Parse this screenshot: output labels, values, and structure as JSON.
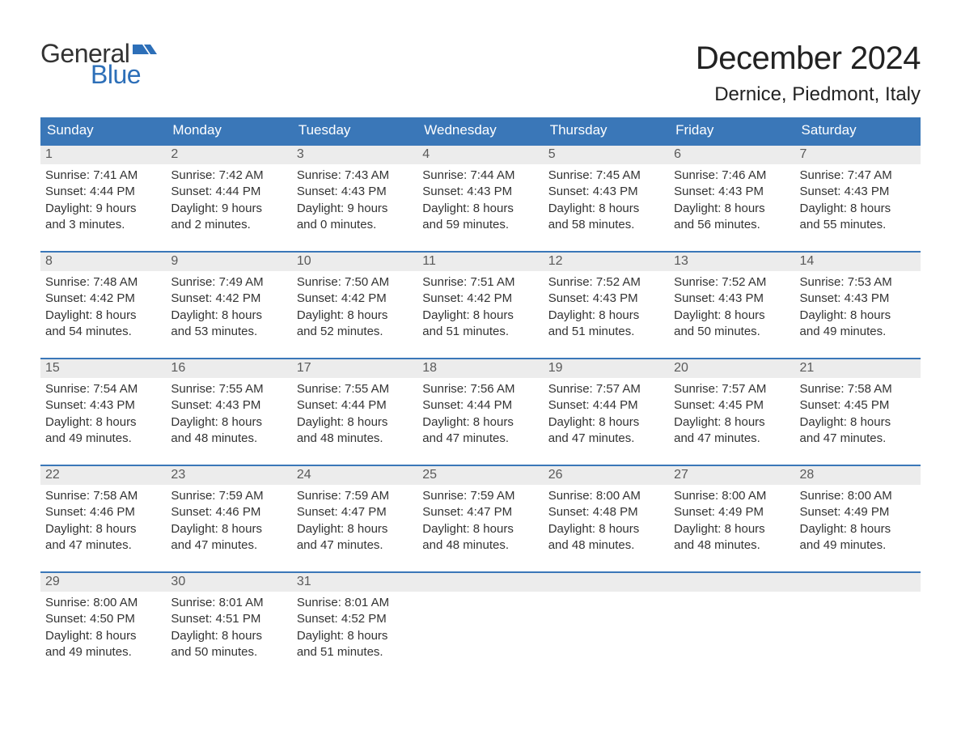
{
  "brand": {
    "word1": "General",
    "word2": "Blue",
    "flag_color": "#2d6fb8",
    "text_color_dark": "#333333"
  },
  "title": "December 2024",
  "location": "Dernice, Piedmont, Italy",
  "colors": {
    "header_bg": "#3a77b8",
    "header_text": "#ffffff",
    "week_border": "#3a77b8",
    "daynum_bg": "#ececec",
    "daynum_text": "#5a5a5a",
    "body_text": "#333333",
    "page_bg": "#ffffff"
  },
  "typography": {
    "title_fontsize": 40,
    "location_fontsize": 24,
    "dow_fontsize": 17,
    "daynum_fontsize": 16,
    "body_fontsize": 15,
    "logo_fontsize": 32
  },
  "days_of_week": [
    "Sunday",
    "Monday",
    "Tuesday",
    "Wednesday",
    "Thursday",
    "Friday",
    "Saturday"
  ],
  "weeks": [
    [
      {
        "n": "1",
        "sunrise": "7:41 AM",
        "sunset": "4:44 PM",
        "dl1": "9 hours",
        "dl2": "and 3 minutes."
      },
      {
        "n": "2",
        "sunrise": "7:42 AM",
        "sunset": "4:44 PM",
        "dl1": "9 hours",
        "dl2": "and 2 minutes."
      },
      {
        "n": "3",
        "sunrise": "7:43 AM",
        "sunset": "4:43 PM",
        "dl1": "9 hours",
        "dl2": "and 0 minutes."
      },
      {
        "n": "4",
        "sunrise": "7:44 AM",
        "sunset": "4:43 PM",
        "dl1": "8 hours",
        "dl2": "and 59 minutes."
      },
      {
        "n": "5",
        "sunrise": "7:45 AM",
        "sunset": "4:43 PM",
        "dl1": "8 hours",
        "dl2": "and 58 minutes."
      },
      {
        "n": "6",
        "sunrise": "7:46 AM",
        "sunset": "4:43 PM",
        "dl1": "8 hours",
        "dl2": "and 56 minutes."
      },
      {
        "n": "7",
        "sunrise": "7:47 AM",
        "sunset": "4:43 PM",
        "dl1": "8 hours",
        "dl2": "and 55 minutes."
      }
    ],
    [
      {
        "n": "8",
        "sunrise": "7:48 AM",
        "sunset": "4:42 PM",
        "dl1": "8 hours",
        "dl2": "and 54 minutes."
      },
      {
        "n": "9",
        "sunrise": "7:49 AM",
        "sunset": "4:42 PM",
        "dl1": "8 hours",
        "dl2": "and 53 minutes."
      },
      {
        "n": "10",
        "sunrise": "7:50 AM",
        "sunset": "4:42 PM",
        "dl1": "8 hours",
        "dl2": "and 52 minutes."
      },
      {
        "n": "11",
        "sunrise": "7:51 AM",
        "sunset": "4:42 PM",
        "dl1": "8 hours",
        "dl2": "and 51 minutes."
      },
      {
        "n": "12",
        "sunrise": "7:52 AM",
        "sunset": "4:43 PM",
        "dl1": "8 hours",
        "dl2": "and 51 minutes."
      },
      {
        "n": "13",
        "sunrise": "7:52 AM",
        "sunset": "4:43 PM",
        "dl1": "8 hours",
        "dl2": "and 50 minutes."
      },
      {
        "n": "14",
        "sunrise": "7:53 AM",
        "sunset": "4:43 PM",
        "dl1": "8 hours",
        "dl2": "and 49 minutes."
      }
    ],
    [
      {
        "n": "15",
        "sunrise": "7:54 AM",
        "sunset": "4:43 PM",
        "dl1": "8 hours",
        "dl2": "and 49 minutes."
      },
      {
        "n": "16",
        "sunrise": "7:55 AM",
        "sunset": "4:43 PM",
        "dl1": "8 hours",
        "dl2": "and 48 minutes."
      },
      {
        "n": "17",
        "sunrise": "7:55 AM",
        "sunset": "4:44 PM",
        "dl1": "8 hours",
        "dl2": "and 48 minutes."
      },
      {
        "n": "18",
        "sunrise": "7:56 AM",
        "sunset": "4:44 PM",
        "dl1": "8 hours",
        "dl2": "and 47 minutes."
      },
      {
        "n": "19",
        "sunrise": "7:57 AM",
        "sunset": "4:44 PM",
        "dl1": "8 hours",
        "dl2": "and 47 minutes."
      },
      {
        "n": "20",
        "sunrise": "7:57 AM",
        "sunset": "4:45 PM",
        "dl1": "8 hours",
        "dl2": "and 47 minutes."
      },
      {
        "n": "21",
        "sunrise": "7:58 AM",
        "sunset": "4:45 PM",
        "dl1": "8 hours",
        "dl2": "and 47 minutes."
      }
    ],
    [
      {
        "n": "22",
        "sunrise": "7:58 AM",
        "sunset": "4:46 PM",
        "dl1": "8 hours",
        "dl2": "and 47 minutes."
      },
      {
        "n": "23",
        "sunrise": "7:59 AM",
        "sunset": "4:46 PM",
        "dl1": "8 hours",
        "dl2": "and 47 minutes."
      },
      {
        "n": "24",
        "sunrise": "7:59 AM",
        "sunset": "4:47 PM",
        "dl1": "8 hours",
        "dl2": "and 47 minutes."
      },
      {
        "n": "25",
        "sunrise": "7:59 AM",
        "sunset": "4:47 PM",
        "dl1": "8 hours",
        "dl2": "and 48 minutes."
      },
      {
        "n": "26",
        "sunrise": "8:00 AM",
        "sunset": "4:48 PM",
        "dl1": "8 hours",
        "dl2": "and 48 minutes."
      },
      {
        "n": "27",
        "sunrise": "8:00 AM",
        "sunset": "4:49 PM",
        "dl1": "8 hours",
        "dl2": "and 48 minutes."
      },
      {
        "n": "28",
        "sunrise": "8:00 AM",
        "sunset": "4:49 PM",
        "dl1": "8 hours",
        "dl2": "and 49 minutes."
      }
    ],
    [
      {
        "n": "29",
        "sunrise": "8:00 AM",
        "sunset": "4:50 PM",
        "dl1": "8 hours",
        "dl2": "and 49 minutes."
      },
      {
        "n": "30",
        "sunrise": "8:01 AM",
        "sunset": "4:51 PM",
        "dl1": "8 hours",
        "dl2": "and 50 minutes."
      },
      {
        "n": "31",
        "sunrise": "8:01 AM",
        "sunset": "4:52 PM",
        "dl1": "8 hours",
        "dl2": "and 51 minutes."
      },
      null,
      null,
      null,
      null
    ]
  ],
  "labels": {
    "sunrise_prefix": "Sunrise: ",
    "sunset_prefix": "Sunset: ",
    "daylight_prefix": "Daylight: "
  }
}
